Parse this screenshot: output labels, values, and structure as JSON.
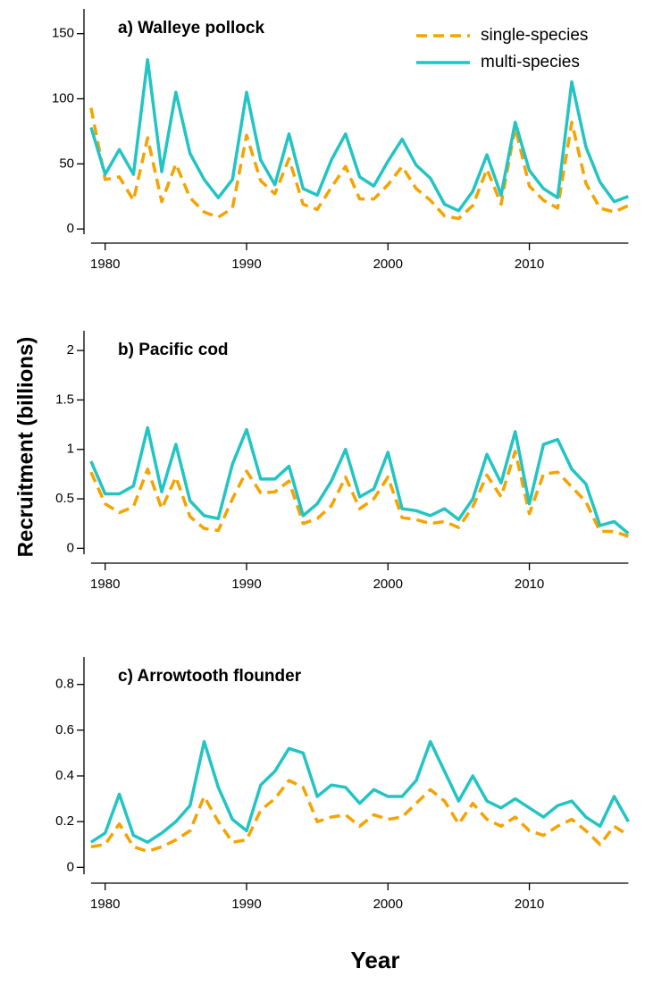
{
  "ylabel": "Recruitment (billions)",
  "xlabel": "Year",
  "chart_data": [
    {
      "type": "line",
      "title": "a) Walleye pollock",
      "legend": "upper right",
      "x": [
        1979,
        1980,
        1981,
        1982,
        1983,
        1984,
        1985,
        1986,
        1987,
        1988,
        1989,
        1990,
        1991,
        1992,
        1993,
        1994,
        1995,
        1996,
        1997,
        1998,
        1999,
        2000,
        2001,
        2002,
        2003,
        2004,
        2005,
        2006,
        2007,
        2008,
        2009,
        2010,
        2011,
        2012,
        2013,
        2014,
        2015,
        2016,
        2017
      ],
      "xlim": [
        1978.5,
        2017.8
      ],
      "xticks": [
        1980,
        1990,
        2000,
        2010
      ],
      "ylim": [
        -4,
        169
      ],
      "yticks": [
        0,
        50,
        100,
        150
      ],
      "series": [
        {
          "name": "single-species",
          "color": "#f5a300",
          "dashed": true,
          "values": [
            93,
            38,
            40,
            22,
            70,
            21,
            50,
            24,
            13,
            9,
            16,
            72,
            37,
            27,
            54,
            19,
            15,
            32,
            48,
            23,
            23,
            34,
            48,
            31,
            22,
            10,
            8,
            18,
            46,
            19,
            78,
            33,
            22,
            16,
            82,
            35,
            16,
            13,
            18
          ]
        },
        {
          "name": "multi-species",
          "color": "#22c4c4",
          "dashed": false,
          "values": [
            78,
            42,
            61,
            42,
            130,
            44,
            105,
            58,
            38,
            24,
            38,
            105,
            53,
            34,
            73,
            31,
            26,
            53,
            73,
            40,
            33,
            52,
            69,
            49,
            39,
            19,
            14,
            29,
            57,
            26,
            82,
            45,
            31,
            24,
            113,
            63,
            36,
            21,
            25
          ]
        }
      ]
    },
    {
      "type": "line",
      "title": "b) Pacific cod",
      "x": [
        1979,
        1980,
        1981,
        1982,
        1983,
        1984,
        1985,
        1986,
        1987,
        1988,
        1989,
        1990,
        1991,
        1992,
        1993,
        1994,
        1995,
        1996,
        1997,
        1998,
        1999,
        2000,
        2001,
        2002,
        2003,
        2004,
        2005,
        2006,
        2007,
        2008,
        2009,
        2010,
        2011,
        2012,
        2013,
        2014,
        2015,
        2016,
        2017
      ],
      "xlim": [
        1978.5,
        2017.8
      ],
      "xticks": [
        1980,
        1990,
        2000,
        2010
      ],
      "ylim": [
        -0.06,
        2.2
      ],
      "yticks": [
        0,
        0.5,
        1,
        1.5,
        2
      ],
      "series": [
        {
          "color": "#f5a300",
          "dashed": true,
          "values": [
            0.77,
            0.45,
            0.36,
            0.42,
            0.8,
            0.4,
            0.72,
            0.32,
            0.2,
            0.18,
            0.5,
            0.78,
            0.56,
            0.57,
            0.68,
            0.25,
            0.3,
            0.43,
            0.72,
            0.4,
            0.5,
            0.72,
            0.31,
            0.29,
            0.25,
            0.27,
            0.21,
            0.42,
            0.74,
            0.52,
            0.98,
            0.35,
            0.75,
            0.77,
            0.62,
            0.47,
            0.17,
            0.17,
            0.12
          ]
        },
        {
          "color": "#22c4c4",
          "dashed": false,
          "values": [
            0.88,
            0.55,
            0.55,
            0.63,
            1.22,
            0.57,
            1.05,
            0.48,
            0.33,
            0.3,
            0.85,
            1.2,
            0.7,
            0.7,
            0.83,
            0.33,
            0.45,
            0.68,
            1.0,
            0.52,
            0.6,
            0.97,
            0.4,
            0.38,
            0.33,
            0.4,
            0.29,
            0.5,
            0.95,
            0.66,
            1.18,
            0.45,
            1.05,
            1.1,
            0.8,
            0.65,
            0.23,
            0.27,
            0.15
          ]
        }
      ]
    },
    {
      "type": "line",
      "title": "c) Arrowtooth flounder",
      "x": [
        1979,
        1980,
        1981,
        1982,
        1983,
        1984,
        1985,
        1986,
        1987,
        1988,
        1989,
        1990,
        1991,
        1992,
        1993,
        1994,
        1995,
        1996,
        1997,
        1998,
        1999,
        2000,
        2001,
        2002,
        2003,
        2004,
        2005,
        2006,
        2007,
        2008,
        2009,
        2010,
        2011,
        2012,
        2013,
        2014,
        2015,
        2016,
        2017
      ],
      "xlim": [
        1978.5,
        2017.8
      ],
      "xticks": [
        1980,
        1990,
        2000,
        2010
      ],
      "ylim": [
        -0.03,
        0.92
      ],
      "yticks": [
        0,
        0.2,
        0.4,
        0.6,
        0.8
      ],
      "series": [
        {
          "color": "#f5a300",
          "dashed": true,
          "values": [
            0.09,
            0.1,
            0.19,
            0.09,
            0.07,
            0.09,
            0.12,
            0.16,
            0.31,
            0.2,
            0.11,
            0.12,
            0.25,
            0.3,
            0.38,
            0.35,
            0.2,
            0.22,
            0.23,
            0.18,
            0.23,
            0.21,
            0.22,
            0.28,
            0.34,
            0.29,
            0.19,
            0.28,
            0.21,
            0.18,
            0.22,
            0.16,
            0.14,
            0.18,
            0.21,
            0.16,
            0.1,
            0.18,
            0.14
          ]
        },
        {
          "color": "#22c4c4",
          "dashed": false,
          "values": [
            0.11,
            0.15,
            0.32,
            0.14,
            0.11,
            0.15,
            0.2,
            0.27,
            0.55,
            0.35,
            0.21,
            0.16,
            0.36,
            0.42,
            0.52,
            0.5,
            0.31,
            0.36,
            0.35,
            0.28,
            0.34,
            0.31,
            0.31,
            0.38,
            0.55,
            0.42,
            0.29,
            0.4,
            0.29,
            0.26,
            0.3,
            0.26,
            0.22,
            0.27,
            0.29,
            0.22,
            0.18,
            0.31,
            0.2
          ]
        }
      ]
    }
  ]
}
